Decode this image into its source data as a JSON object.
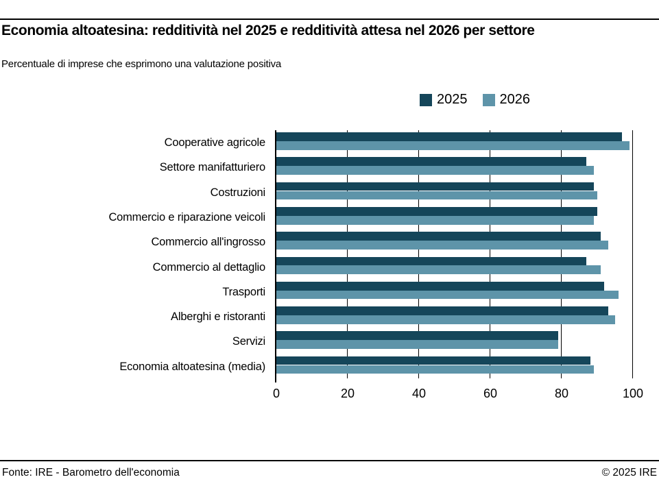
{
  "footer": {
    "source": "Fonte: IRE - Barometro dell'economia",
    "copyright": "© 2025 IRE"
  },
  "chart_data": {
    "type": "bar",
    "orientation": "horizontal",
    "title": "Economia altoatesina: redditività nel 2025 e redditività attesa nel 2026 per settore",
    "subtitle": "Percentuale di imprese che esprimono una valutazione positiva",
    "categories": [
      "Cooperative agricole",
      "Settore manifatturiero",
      "Costruzioni",
      "Commercio e riparazione veicoli",
      "Commercio all'ingrosso",
      "Commercio al dettaglio",
      "Trasporti",
      "Alberghi e ristoranti",
      "Servizi",
      "Economia altoatesina (media)"
    ],
    "series": [
      {
        "name": "2025",
        "color": "#15465A",
        "values": [
          97,
          87,
          89,
          90,
          91,
          87,
          92,
          93,
          79,
          88
        ]
      },
      {
        "name": "2026",
        "color": "#5E94A9",
        "values": [
          99,
          89,
          90,
          89,
          93,
          91,
          96,
          95,
          79,
          89
        ]
      }
    ],
    "xlim": [
      0,
      100
    ],
    "x_ticks": [
      0,
      20,
      40,
      60,
      80,
      100
    ],
    "grid": true,
    "legend_position": "top-right"
  }
}
